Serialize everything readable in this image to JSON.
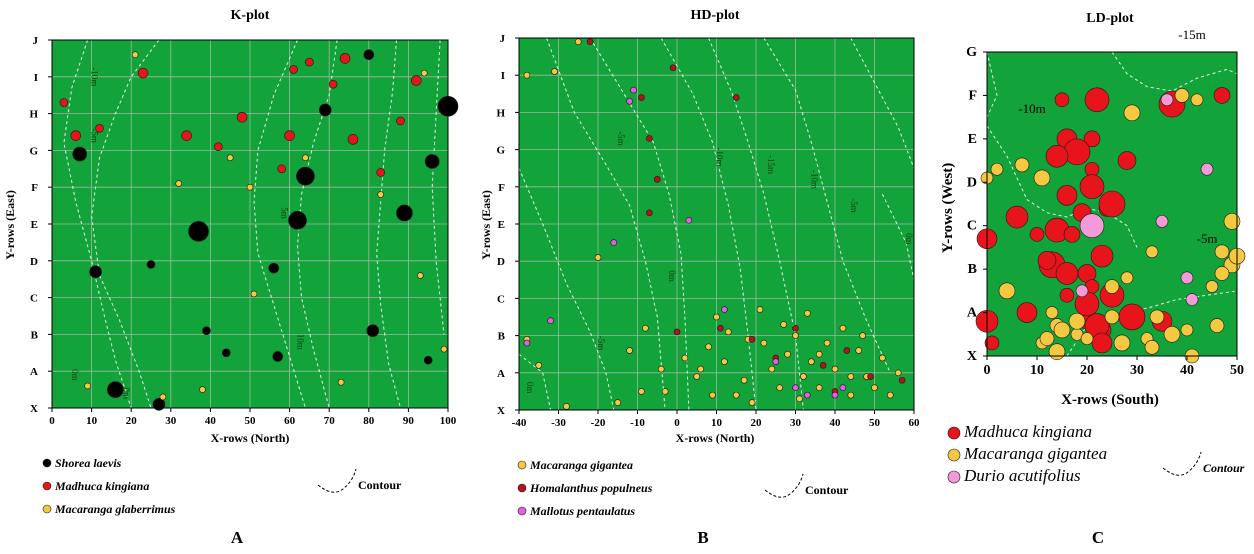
{
  "chart_data": [
    {
      "type": "scatter",
      "title": "K-plot",
      "xlabel": "X-rows (North)",
      "ylabel": "Y-rows (East)",
      "xlim": [
        0,
        100
      ],
      "ylim": [
        "X",
        "J"
      ],
      "x_ticks": [
        "0",
        "10",
        "20",
        "30",
        "40",
        "50",
        "60",
        "70",
        "80",
        "90",
        "100"
      ],
      "y_ticks": [
        "X",
        "A",
        "B",
        "C",
        "D",
        "E",
        "F",
        "G",
        "H",
        "I",
        "J"
      ],
      "grid": true,
      "legend_position": "bottom-left",
      "panel_letter": "A",
      "contour_label": "Contour",
      "contour_marks": [
        "-10m",
        "-5m",
        "0m",
        "0m",
        "5m",
        "10m"
      ],
      "series": [
        {
          "name": "Shorea laevis",
          "color": "#000000",
          "points": [
            [
              7,
              6.9
            ],
            [
              37,
              4.8
            ],
            [
              62,
              5.1
            ],
            [
              89,
              5.3
            ],
            [
              96,
              6.7
            ],
            [
              100,
              8.2
            ],
            [
              64,
              6.3
            ],
            [
              16,
              0.5
            ],
            [
              27,
              0.1
            ],
            [
              44,
              1.5
            ],
            [
              57,
              1.4
            ],
            [
              81,
              2.1
            ],
            [
              95,
              1.3
            ],
            [
              56,
              3.8
            ],
            [
              11,
              3.7
            ],
            [
              25,
              3.9
            ],
            [
              80,
              9.6
            ],
            [
              69,
              8.1
            ],
            [
              39,
              2.1
            ]
          ]
        },
        {
          "name": "Madhuca kingiana",
          "color": "#e8141c",
          "points": [
            [
              3,
              8.3
            ],
            [
              6,
              7.4
            ],
            [
              12,
              7.6
            ],
            [
              34,
              7.4
            ],
            [
              42,
              7.1
            ],
            [
              60,
              7.4
            ],
            [
              61,
              9.2
            ],
            [
              74,
              9.5
            ],
            [
              88,
              7.8
            ],
            [
              76,
              7.3
            ],
            [
              58,
              6.5
            ],
            [
              48,
              7.9
            ],
            [
              65,
              9.4
            ],
            [
              92,
              8.9
            ],
            [
              83,
              6.4
            ],
            [
              23,
              9.1
            ],
            [
              71,
              8.8
            ]
          ]
        },
        {
          "name": "Macaranga glaberrimus",
          "color": "#f5c842",
          "points": [
            [
              9,
              0.6
            ],
            [
              45,
              6.8
            ],
            [
              73,
              0.7
            ],
            [
              93,
              3.6
            ],
            [
              99,
              1.6
            ],
            [
              83,
              5.8
            ],
            [
              32,
              6.1
            ],
            [
              50,
              6.0
            ],
            [
              21,
              9.6
            ],
            [
              38,
              0.5
            ],
            [
              64,
              6.8
            ],
            [
              94,
              9.1
            ],
            [
              28,
              0.3
            ],
            [
              51,
              3.1
            ]
          ]
        }
      ]
    },
    {
      "type": "scatter",
      "title": "HD-plot",
      "xlabel": "X-rows (North)",
      "ylabel": "Y-rows (East)",
      "xlim": [
        -40,
        60
      ],
      "ylim": [
        "X",
        "J"
      ],
      "x_ticks": [
        "-40",
        "-30",
        "-20",
        "-10",
        "0",
        "10",
        "20",
        "30",
        "40",
        "50",
        "60"
      ],
      "y_ticks": [
        "X",
        "A",
        "B",
        "C",
        "D",
        "E",
        "F",
        "G",
        "H",
        "I",
        "J"
      ],
      "grid": true,
      "legend_position": "bottom-left",
      "panel_letter": "B",
      "contour_label": "Contour",
      "contour_marks": [
        "0m",
        "-5m",
        "0m",
        "-5m",
        "-10m",
        "-15m",
        "-10m",
        "-5m",
        "0m"
      ],
      "series": [
        {
          "name": "Macaranga gigantea",
          "color": "#f5c842",
          "points": [
            [
              -38,
              1.9
            ],
            [
              -35,
              1.2
            ],
            [
              -25,
              9.9
            ],
            [
              -20,
              4.1
            ],
            [
              -15,
              0.2
            ],
            [
              -12,
              1.6
            ],
            [
              -8,
              2.2
            ],
            [
              -3,
              0.5
            ],
            [
              5,
              0.9
            ],
            [
              8,
              1.7
            ],
            [
              10,
              2.5
            ],
            [
              12,
              1.3
            ],
            [
              15,
              0.4
            ],
            [
              18,
              1.9
            ],
            [
              21,
              2.7
            ],
            [
              24,
              1.1
            ],
            [
              26,
              0.6
            ],
            [
              28,
              1.5
            ],
            [
              30,
              2.0
            ],
            [
              32,
              0.9
            ],
            [
              34,
              1.3
            ],
            [
              36,
              0.6
            ],
            [
              38,
              1.8
            ],
            [
              40,
              1.1
            ],
            [
              42,
              2.2
            ],
            [
              44,
              0.4
            ],
            [
              46,
              1.6
            ],
            [
              48,
              0.9
            ],
            [
              50,
              0.6
            ],
            [
              52,
              1.4
            ],
            [
              54,
              0.4
            ],
            [
              56,
              1.0
            ],
            [
              2,
              1.4
            ],
            [
              6,
              1.1
            ],
            [
              13,
              2.1
            ],
            [
              17,
              0.8
            ],
            [
              22,
              1.8
            ],
            [
              27,
              2.3
            ],
            [
              33,
              2.6
            ],
            [
              -4,
              1.1
            ],
            [
              -31,
              9.1
            ],
            [
              -38,
              9.0
            ],
            [
              9,
              0.4
            ],
            [
              19,
              0.2
            ],
            [
              31,
              0.3
            ],
            [
              44,
              0.9
            ],
            [
              47,
              2.0
            ],
            [
              36,
              1.5
            ],
            [
              -28,
              0.1
            ],
            [
              -9,
              0.5
            ]
          ]
        },
        {
          "name": "Homalanthus populneus",
          "color": "#b5121b",
          "points": [
            [
              -22,
              9.9
            ],
            [
              -9,
              8.4
            ],
            [
              -7,
              7.3
            ],
            [
              -7,
              5.3
            ],
            [
              -5,
              6.2
            ],
            [
              -1,
              9.2
            ],
            [
              0,
              2.1
            ],
            [
              11,
              2.2
            ],
            [
              19,
              1.9
            ],
            [
              25,
              1.4
            ],
            [
              30,
              2.2
            ],
            [
              37,
              1.2
            ],
            [
              40,
              0.5
            ],
            [
              43,
              1.6
            ],
            [
              49,
              0.9
            ],
            [
              57,
              0.8
            ],
            [
              15,
              8.4
            ]
          ]
        },
        {
          "name": "Mallotus pentaulatus",
          "color": "#e060e0",
          "points": [
            [
              -38,
              1.8
            ],
            [
              -32,
              2.4
            ],
            [
              -16,
              4.5
            ],
            [
              -12,
              8.3
            ],
            [
              -11,
              8.6
            ],
            [
              3,
              5.1
            ],
            [
              12,
              2.7
            ],
            [
              25,
              1.3
            ],
            [
              30,
              0.6
            ],
            [
              33,
              0.4
            ],
            [
              40,
              0.4
            ],
            [
              42,
              0.6
            ]
          ]
        }
      ]
    },
    {
      "type": "scatter",
      "title": "LD-plot",
      "xlabel": "X-rows (South)",
      "ylabel": "Y-rows (West)",
      "xlim": [
        0,
        50
      ],
      "ylim": [
        "X",
        "G"
      ],
      "x_ticks": [
        "0",
        "10",
        "20",
        "30",
        "40",
        "50"
      ],
      "y_ticks": [
        "X",
        "A",
        "B",
        "C",
        "D",
        "E",
        "F",
        "G"
      ],
      "grid": false,
      "legend_position": "bottom-left",
      "panel_letter": "C",
      "contour_label": "Contour",
      "contour_marks": [
        "-15m",
        "-10m",
        "-5m"
      ],
      "series": [
        {
          "name": "Madhuca kingiana",
          "color": "#e8141c",
          "points": [
            [
              15,
              5.9
            ],
            [
              22,
              5.9
            ],
            [
              16,
              5.0
            ],
            [
              21,
              5.0
            ],
            [
              18,
              4.7
            ],
            [
              14,
              4.6
            ],
            [
              28,
              4.5
            ],
            [
              21,
              4.3
            ],
            [
              21,
              3.9
            ],
            [
              16,
              3.7
            ],
            [
              24,
              3.4
            ],
            [
              25,
              3.5
            ],
            [
              6,
              3.2
            ],
            [
              19,
              3.3
            ],
            [
              10,
              2.8
            ],
            [
              14,
              2.9
            ],
            [
              0,
              2.7
            ],
            [
              17,
              2.8
            ],
            [
              13,
              2.1
            ],
            [
              16,
              1.9
            ],
            [
              20,
              1.9
            ],
            [
              21,
              1.6
            ],
            [
              25,
              1.4
            ],
            [
              8,
              1.0
            ],
            [
              20,
              0.8
            ],
            [
              29,
              0.9
            ],
            [
              0,
              0.8
            ],
            [
              23,
              0.6
            ],
            [
              1,
              0.3
            ],
            [
              22,
              0.7
            ],
            [
              35,
              0.8
            ],
            [
              47,
              6.0
            ],
            [
              37,
              5.8
            ],
            [
              23,
              2.3
            ],
            [
              12,
              2.2
            ],
            [
              16,
              1.4
            ],
            [
              20,
              1.2
            ],
            [
              23,
              0.3
            ]
          ]
        },
        {
          "name": "Macaranga gigantea",
          "color": "#f5c842",
          "points": [
            [
              2,
              4.3
            ],
            [
              7,
              4.4
            ],
            [
              11,
              4.1
            ],
            [
              42,
              5.9
            ],
            [
              39,
              6.0
            ],
            [
              29,
              5.6
            ],
            [
              0,
              4.1
            ],
            [
              47,
              2.4
            ],
            [
              49,
              2.1
            ],
            [
              45,
              1.6
            ],
            [
              47,
              1.9
            ],
            [
              50,
              2.3
            ],
            [
              28,
              1.8
            ],
            [
              25,
              1.6
            ],
            [
              4,
              1.5
            ],
            [
              13,
              1.0
            ],
            [
              14,
              0.7
            ],
            [
              15,
              0.6
            ],
            [
              18,
              0.5
            ],
            [
              25,
              0.9
            ],
            [
              27,
              0.3
            ],
            [
              32,
              0.4
            ],
            [
              34,
              0.9
            ],
            [
              37,
              0.5
            ],
            [
              40,
              0.6
            ],
            [
              46,
              0.7
            ],
            [
              14,
              0.1
            ],
            [
              11,
              0.3
            ],
            [
              41,
              0.0
            ],
            [
              49,
              3.1
            ],
            [
              33,
              2.4
            ],
            [
              12,
              0.4
            ],
            [
              18,
              0.8
            ],
            [
              20,
              0.4
            ],
            [
              33,
              0.2
            ]
          ]
        },
        {
          "name": "Durio acutifolius",
          "color": "#f59ad8",
          "points": [
            [
              21,
              3.0
            ],
            [
              35,
              3.1
            ],
            [
              44,
              4.3
            ],
            [
              36,
              5.9
            ],
            [
              41,
              1.3
            ],
            [
              40,
              1.8
            ],
            [
              19,
              1.5
            ]
          ]
        }
      ]
    }
  ],
  "labels": {
    "contour": "Contour"
  }
}
